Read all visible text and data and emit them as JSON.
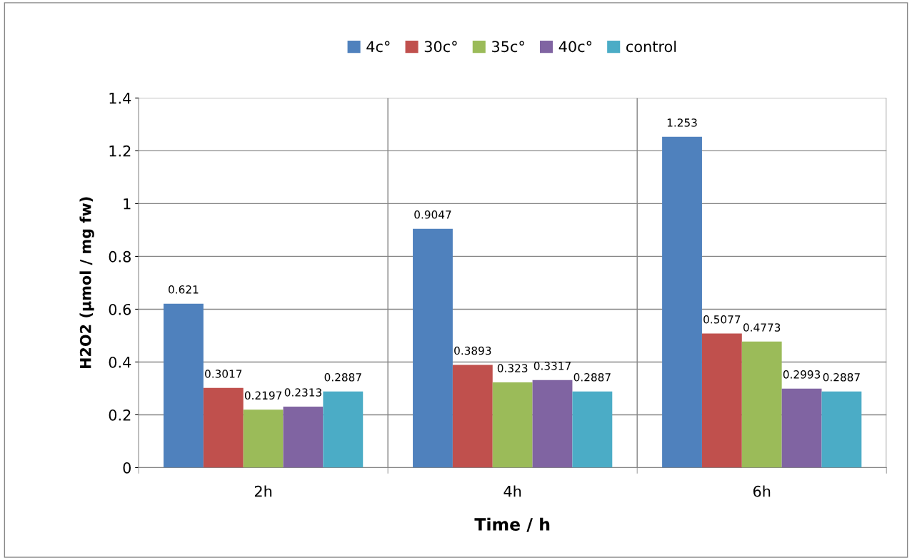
{
  "chart_data": {
    "type": "bar",
    "xlabel": "Time / h",
    "ylabel": "H2O2 (µmol / mg fw)",
    "categories": [
      "2h",
      "4h",
      "6h"
    ],
    "series": [
      {
        "name": "4c°",
        "color": "#4f81bd",
        "values": [
          0.621,
          0.9047,
          1.253
        ]
      },
      {
        "name": "30c°",
        "color": "#c0504d",
        "values": [
          0.3017,
          0.3893,
          0.5077
        ]
      },
      {
        "name": "35c°",
        "color": "#9bbb59",
        "values": [
          0.2197,
          0.323,
          0.4773
        ]
      },
      {
        "name": "40c°",
        "color": "#8064a2",
        "values": [
          0.2313,
          0.3317,
          0.2993
        ]
      },
      {
        "name": "control",
        "color": "#4bacc6",
        "values": [
          0.2887,
          0.2887,
          0.2887
        ]
      }
    ],
    "ylim": [
      0,
      1.4
    ],
    "yticks": [
      0,
      0.2,
      0.4,
      0.6,
      0.8,
      1,
      1.2,
      1.4
    ],
    "grid": true,
    "legend": "top",
    "data_labels": true
  }
}
